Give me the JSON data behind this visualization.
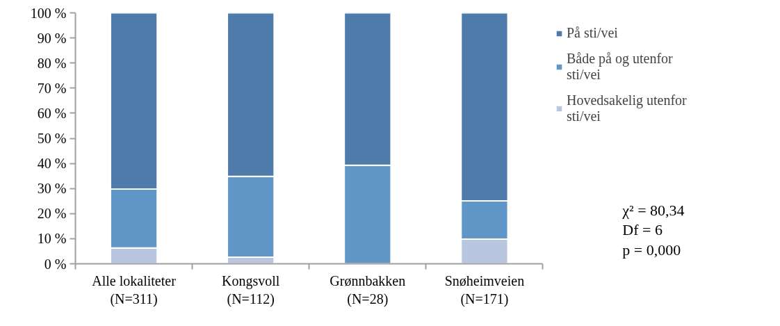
{
  "chart_data": {
    "type": "bar",
    "stacked": true,
    "categories": [
      "Alle lokaliteter\n(N=311)",
      "Kongsvoll\n(N=112)",
      "Grønnbakken\n(N=28)",
      "Snøheimveien\n(N=171)"
    ],
    "series": [
      {
        "name": "Hovedsakelig utenfor sti/vei",
        "color": "#b8c6df",
        "values": [
          6.3,
          2.6,
          0,
          9.8
        ]
      },
      {
        "name": "Både på og utenfor sti/vei",
        "color": "#6096c8",
        "values": [
          23.5,
          32.2,
          39.3,
          15.3
        ]
      },
      {
        "name": "På sti/vei",
        "color": "#4f7bab",
        "values": [
          70.2,
          65.2,
          60.7,
          74.9
        ]
      }
    ],
    "ylim": [
      0,
      100
    ],
    "yticks": [
      {
        "value": 0,
        "label": "0 %"
      },
      {
        "value": 10,
        "label": "10 %"
      },
      {
        "value": 20,
        "label": "20 %"
      },
      {
        "value": 30,
        "label": "30 %"
      },
      {
        "value": 40,
        "label": "40 %"
      },
      {
        "value": 50,
        "label": "50 %"
      },
      {
        "value": 60,
        "label": "60 %"
      },
      {
        "value": 70,
        "label": "70 %"
      },
      {
        "value": 80,
        "label": "80 %"
      },
      {
        "value": 90,
        "label": "90 %"
      },
      {
        "value": 100,
        "label": "100 %"
      }
    ],
    "grid": false,
    "legend": "right",
    "annotations": [
      "χ² = 80,34",
      "Df = 6",
      "p  = 0,000"
    ]
  }
}
